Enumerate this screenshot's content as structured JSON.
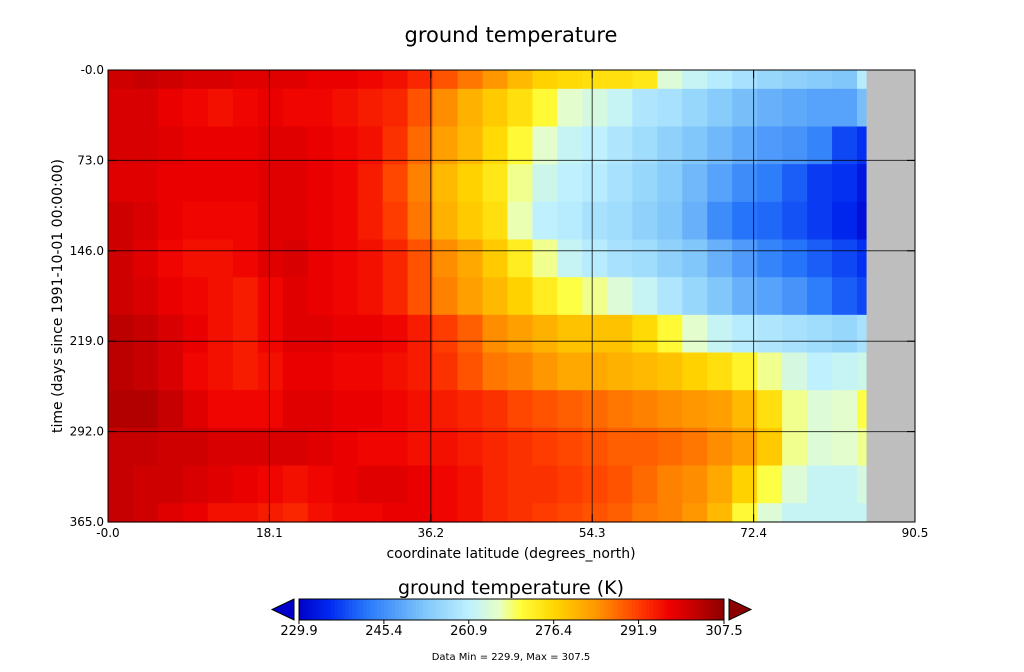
{
  "chart_data": {
    "type": "heatmap",
    "title": "ground temperature",
    "xlabel": "coordinate latitude (degrees_north)",
    "ylabel": "time (days since 1991-10-01 00:00:00)",
    "xlim": [
      -0.0,
      90.5
    ],
    "ylim": [
      -0.0,
      365.0
    ],
    "y_inverted": true,
    "x_ticks": [
      "-0.0",
      "18.1",
      "36.2",
      "54.3",
      "72.4",
      "90.5"
    ],
    "y_ticks": [
      "-0.0",
      "73.0",
      "146.0",
      "219.0",
      "292.0",
      "365.0"
    ],
    "grid": true,
    "x_lat_edges": [
      0,
      2.8,
      5.6,
      8.4,
      11.2,
      14.0,
      16.8,
      19.6,
      22.4,
      25.2,
      28.0,
      30.8,
      33.6,
      36.4,
      39.2,
      42.0,
      44.8,
      47.6,
      50.4,
      53.2,
      56.0,
      58.8,
      61.6,
      64.4,
      67.2,
      70.0,
      72.8,
      75.6,
      78.4,
      81.2,
      84.0,
      85.0
    ],
    "no_data_color": "#bebebe",
    "month_values": [
      [
        301,
        302,
        301,
        300,
        300,
        299,
        299,
        299,
        298,
        298,
        297,
        296,
        294,
        290,
        287,
        284,
        280,
        277,
        276,
        275,
        275,
        274,
        265,
        262,
        260,
        258,
        256,
        255,
        254,
        253,
        260
      ],
      [
        300,
        300,
        298,
        297,
        296,
        297,
        298,
        297,
        297,
        296,
        295,
        294,
        290,
        285,
        281,
        278,
        275,
        271,
        266,
        264,
        262,
        259,
        258,
        256,
        254,
        252,
        250,
        249,
        248,
        248,
        252
      ],
      [
        300,
        300,
        299,
        298,
        298,
        298,
        299,
        299,
        298,
        297,
        296,
        293,
        288,
        283,
        280,
        276,
        271,
        266,
        262,
        261,
        259,
        257,
        255,
        253,
        251,
        249,
        247,
        246,
        244,
        238,
        236
      ],
      [
        299,
        299,
        298,
        298,
        298,
        298,
        299,
        299,
        298,
        297,
        295,
        291,
        286,
        280,
        277,
        274,
        268,
        263,
        261,
        260,
        258,
        256,
        254,
        251,
        248,
        245,
        243,
        240,
        237,
        236,
        233
      ],
      [
        301,
        300,
        298,
        297,
        297,
        297,
        299,
        299,
        298,
        297,
        295,
        292,
        287,
        281,
        278,
        275,
        267,
        261,
        260,
        258,
        257,
        255,
        253,
        250,
        245,
        242,
        241,
        239,
        237,
        235,
        232
      ],
      [
        301,
        299,
        297,
        296,
        296,
        297,
        299,
        300,
        298,
        297,
        296,
        294,
        290,
        285,
        282,
        278,
        273,
        268,
        262,
        260,
        258,
        257,
        255,
        253,
        250,
        247,
        244,
        242,
        240,
        238,
        236
      ],
      [
        301,
        300,
        298,
        297,
        296,
        295,
        297,
        299,
        298,
        297,
        296,
        294,
        290,
        286,
        283,
        280,
        277,
        273,
        270,
        268,
        265,
        262,
        259,
        256,
        253,
        250,
        248,
        246,
        243,
        240,
        238
      ],
      [
        303,
        302,
        300,
        298,
        296,
        295,
        297,
        299,
        299,
        298,
        298,
        297,
        295,
        292,
        289,
        285,
        283,
        281,
        279,
        279,
        279,
        276,
        271,
        266,
        262,
        260,
        259,
        258,
        257,
        256,
        258
      ],
      [
        303,
        302,
        300,
        297,
        296,
        295,
        296,
        298,
        298,
        297,
        297,
        296,
        295,
        293,
        290,
        287,
        286,
        284,
        282,
        282,
        281,
        280,
        279,
        277,
        275,
        272,
        268,
        264,
        261,
        262,
        263
      ],
      [
        304,
        304,
        302,
        299,
        297,
        297,
        297,
        299,
        299,
        298,
        298,
        297,
        296,
        295,
        294,
        293,
        291,
        290,
        289,
        288,
        287,
        286,
        285,
        284,
        283,
        280,
        275,
        268,
        265,
        266,
        270
      ],
      [
        302,
        302,
        301,
        301,
        300,
        300,
        300,
        300,
        299,
        298,
        297,
        297,
        296,
        296,
        295,
        294,
        293,
        292,
        291,
        290,
        289,
        289,
        288,
        287,
        285,
        283,
        278,
        268,
        265,
        266,
        268
      ],
      [
        302,
        301,
        301,
        300,
        299,
        298,
        297,
        296,
        297,
        298,
        299,
        299,
        298,
        297,
        296,
        294,
        293,
        293,
        292,
        291,
        290,
        288,
        286,
        285,
        282,
        277,
        270,
        265,
        262,
        262,
        264
      ],
      [
        302,
        301,
        299,
        298,
        296,
        296,
        295,
        294,
        296,
        297,
        297,
        298,
        298,
        297,
        296,
        294,
        293,
        292,
        291,
        290,
        289,
        287,
        286,
        284,
        280,
        271,
        265,
        262,
        262,
        262,
        262
      ]
    ],
    "colorbar": {
      "title": "ground temperature (K)",
      "min": 229.9,
      "max": 307.5,
      "ticks": [
        "229.9",
        "245.4",
        "260.9",
        "276.4",
        "291.9",
        "307.5"
      ],
      "under_color": "#0000c8",
      "over_color": "#8b0000"
    },
    "footer": "Data Min = 229.9, Max = 307.5"
  }
}
